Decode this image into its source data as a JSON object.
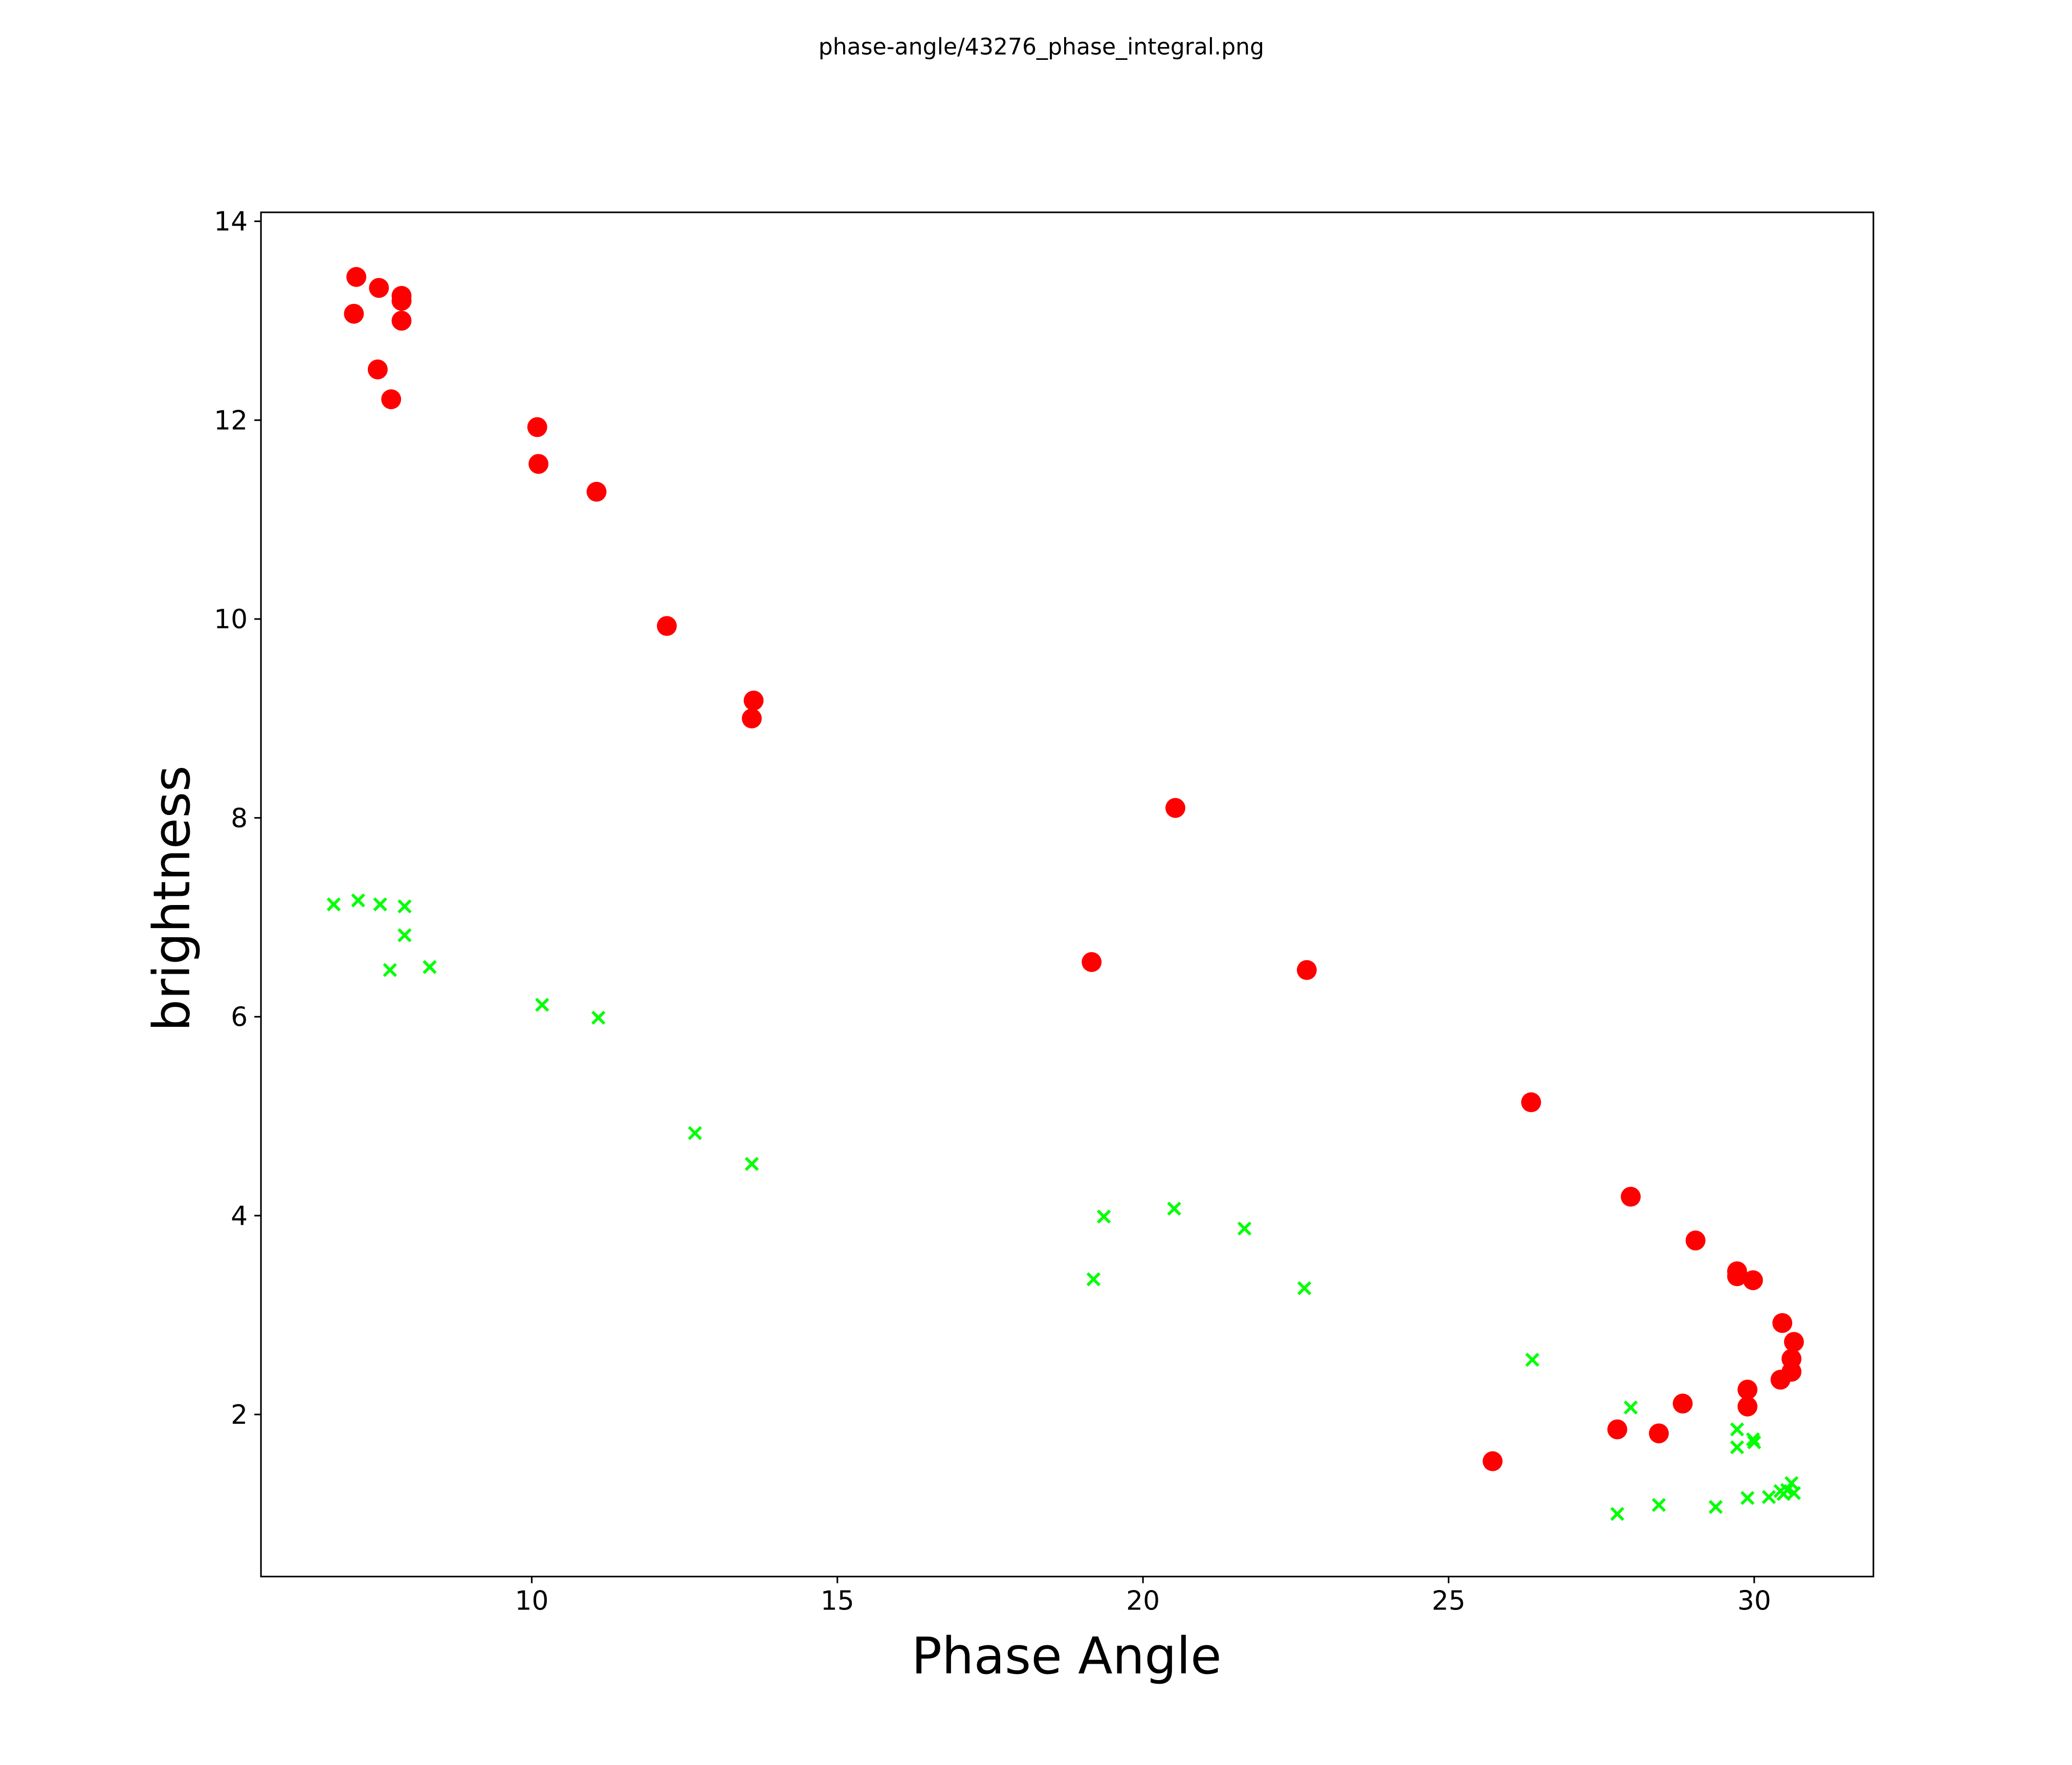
{
  "figure_title": "phase-angle/43276_phase_integral.png",
  "chart_data": {
    "type": "scatter",
    "title": "phase-angle/43276_phase_integral.png",
    "xlabel": "Phase Angle",
    "ylabel": "brightness",
    "xlim": [
      5.57,
      31.95
    ],
    "ylim": [
      0.37,
      14.09
    ],
    "xticks": [
      10,
      15,
      20,
      25,
      30
    ],
    "yticks": [
      2,
      4,
      6,
      8,
      10,
      12,
      14
    ],
    "grid": false,
    "series": [
      {
        "name": "red-circles",
        "marker": "circle",
        "color": "#ff0000",
        "x": [
          7.13,
          7.5,
          7.87,
          7.87,
          7.09,
          7.87,
          7.48,
          7.7,
          10.09,
          10.11,
          11.06,
          12.21,
          13.63,
          13.6,
          20.53,
          19.16,
          22.68,
          26.35,
          27.98,
          29.04,
          29.72,
          29.72,
          29.98,
          30.46,
          30.65,
          30.61,
          30.61,
          30.43,
          29.89,
          29.89,
          28.83,
          27.76,
          28.44,
          25.72
        ],
        "y": [
          13.44,
          13.33,
          13.25,
          13.2,
          13.07,
          13.0,
          12.51,
          12.21,
          11.93,
          11.56,
          11.28,
          9.93,
          9.18,
          9.0,
          8.1,
          6.55,
          6.47,
          5.14,
          4.19,
          3.75,
          3.44,
          3.39,
          3.35,
          2.92,
          2.73,
          2.56,
          2.43,
          2.35,
          2.25,
          2.08,
          2.11,
          1.85,
          1.81,
          1.53
        ]
      },
      {
        "name": "green-crosses",
        "marker": "x",
        "color": "#00ff00",
        "x": [
          6.76,
          7.16,
          7.52,
          7.92,
          7.92,
          7.68,
          8.33,
          10.17,
          11.09,
          12.67,
          13.6,
          19.19,
          19.36,
          20.51,
          21.66,
          22.64,
          26.37,
          27.98,
          29.72,
          29.72,
          29.98,
          30.0,
          27.76,
          28.44,
          29.37,
          29.89,
          30.24,
          30.43,
          30.54,
          30.61,
          30.65,
          30.48
        ],
        "y": [
          7.13,
          7.17,
          7.13,
          7.11,
          6.82,
          6.47,
          6.5,
          6.12,
          5.99,
          4.83,
          4.52,
          3.36,
          3.99,
          4.07,
          3.87,
          3.27,
          2.55,
          2.07,
          1.85,
          1.67,
          1.75,
          1.72,
          1.0,
          1.09,
          1.07,
          1.16,
          1.17,
          1.23,
          1.24,
          1.31,
          1.21,
          1.2
        ]
      }
    ]
  }
}
